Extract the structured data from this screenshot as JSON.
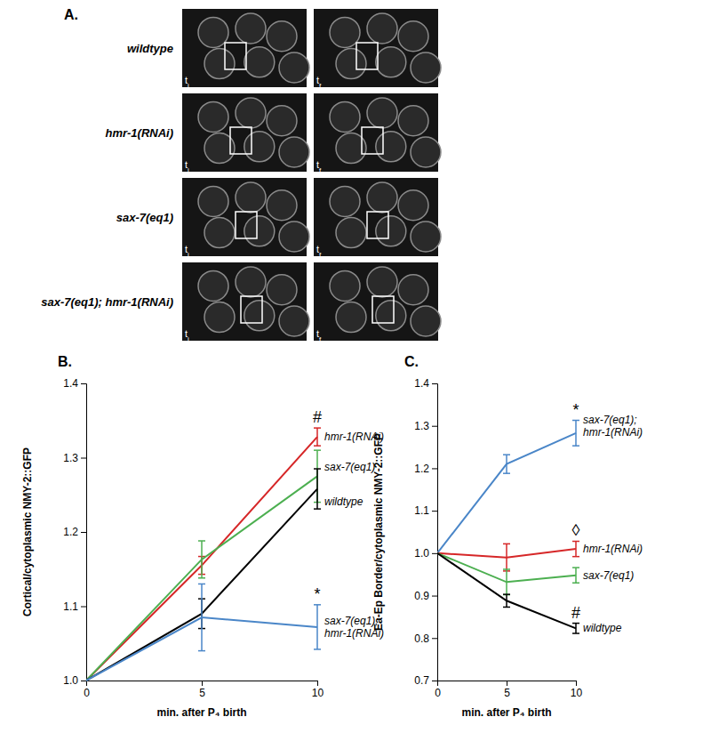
{
  "panel_a": {
    "label": "A.",
    "rows": [
      "wildtype",
      "hmr-1(RNAi)",
      "sax-7(eq1)",
      "sax-7(eq1); hmr-1(RNAi)"
    ],
    "frames": [
      [
        "t",
        "i"
      ],
      [
        "t",
        "f"
      ]
    ]
  },
  "chart_data": [
    {
      "type": "line",
      "title": "B.",
      "x_label": "min. after P₄ birth",
      "y_label": "Cortical/cytoplasmic NMY-2::GFP",
      "x": [
        0,
        5,
        10
      ],
      "xlim": [
        0,
        10
      ],
      "xticks": [
        0,
        5,
        10
      ],
      "ylim": [
        1.0,
        1.4
      ],
      "yticks": [
        {
          "value": 1.0,
          "label": "1.0"
        },
        1.1,
        1.2,
        1.3,
        1.4
      ],
      "series": [
        {
          "name": "hmr-1(RNAi)",
          "color": "#d62728",
          "values": [
            1.0,
            1.155,
            1.328
          ],
          "errors": [
            0,
            0.012,
            0.012
          ],
          "annotation": "#"
        },
        {
          "name": "sax-7(eq1)",
          "color": "#4caf50",
          "values": [
            1.0,
            1.163,
            1.275
          ],
          "errors": [
            0,
            0.025,
            0.035
          ]
        },
        {
          "name": "wildtype",
          "color": "#000000",
          "values": [
            1.0,
            1.09,
            1.258
          ],
          "errors": [
            0,
            0.02,
            0.027
          ]
        },
        {
          "name": "sax-7(eq1); hmr-1(RNAi)",
          "color": "#4a86c8",
          "values": [
            1.0,
            1.085,
            1.072
          ],
          "errors": [
            0,
            0.045,
            0.03
          ],
          "annotation": "*"
        }
      ]
    },
    {
      "type": "line",
      "title": "C.",
      "x_label": "min. after P₄ birth",
      "y_label": "Ea-Ep Border/cytoplasmic NMY-2::GFP",
      "x": [
        0,
        5,
        10
      ],
      "xlim": [
        0,
        10
      ],
      "xticks": [
        0,
        5,
        10
      ],
      "ylim": [
        0.7,
        1.4
      ],
      "yticks": [
        0.7,
        0.8,
        0.9,
        {
          "value": 1.0,
          "label": "1.0"
        },
        1.1,
        1.2,
        1.3,
        1.4
      ],
      "series": [
        {
          "name": "sax-7(eq1); hmr-1(RNAi)",
          "color": "#4a86c8",
          "values": [
            1.0,
            1.21,
            1.283
          ],
          "errors": [
            0,
            0.022,
            0.03
          ],
          "annotation": "*"
        },
        {
          "name": "hmr-1(RNAi)",
          "color": "#d62728",
          "values": [
            1.0,
            0.99,
            1.01
          ],
          "errors": [
            0,
            0.032,
            0.018
          ],
          "annotation": "◊"
        },
        {
          "name": "sax-7(eq1)",
          "color": "#4caf50",
          "values": [
            1.0,
            0.932,
            0.948
          ],
          "errors": [
            0,
            0.03,
            0.018
          ]
        },
        {
          "name": "wildtype",
          "color": "#000000",
          "values": [
            1.0,
            0.888,
            0.823
          ],
          "errors": [
            0,
            0.015,
            0.012
          ],
          "annotation": "#"
        }
      ]
    }
  ]
}
